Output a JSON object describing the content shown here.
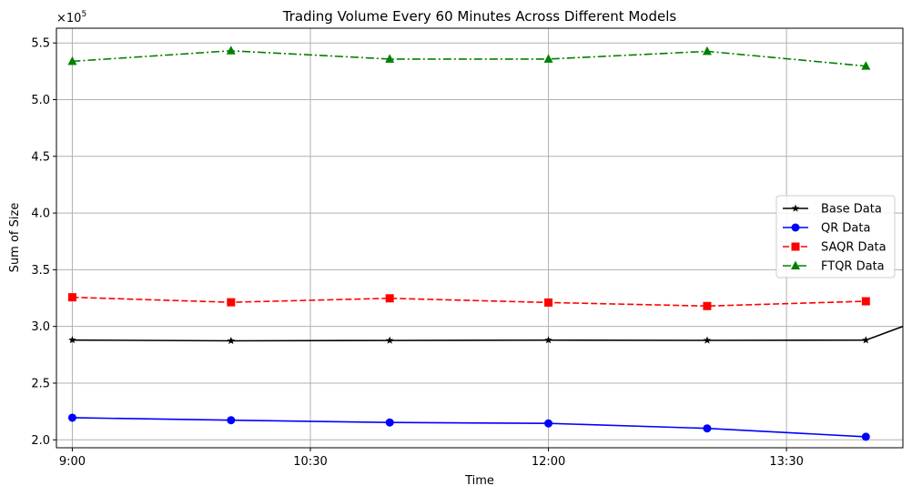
{
  "chart_data": {
    "type": "line",
    "title": "Trading Volume Every 60 Minutes Across Different Models",
    "xlabel": "Time",
    "ylabel": "Sum of Size",
    "y_multiplier_label": "×10",
    "y_multiplier_exponent": "5",
    "x_ticks": [
      {
        "value": 540,
        "label": "9:00"
      },
      {
        "value": 630,
        "label": "10:30"
      },
      {
        "value": 720,
        "label": "12:00"
      },
      {
        "value": 810,
        "label": "13:30"
      }
    ],
    "y_ticks": [
      "2.0",
      "2.5",
      "3.0",
      "3.5",
      "4.0",
      "4.5",
      "5.0",
      "5.5"
    ],
    "y_tick_values": [
      2.0,
      2.5,
      3.0,
      3.5,
      4.0,
      4.5,
      5.0,
      5.5
    ],
    "xlim": [
      534,
      854
    ],
    "ylim": [
      1.93,
      5.63
    ],
    "grid": true,
    "legend_position": "center right",
    "x": [
      540,
      600,
      660,
      720,
      780,
      840
    ],
    "series": [
      {
        "name": "Base Data",
        "values": [
          2.88,
          2.873,
          2.876,
          2.879,
          2.877,
          2.879
        ],
        "tail_end": [
          854,
          3.0
        ],
        "color": "#000000",
        "dash": "solid",
        "marker": "star"
      },
      {
        "name": "QR Data",
        "values": [
          2.195,
          2.173,
          2.153,
          2.145,
          2.101,
          2.027
        ],
        "color": "#0000ff",
        "dash": "solid",
        "marker": "circle"
      },
      {
        "name": "SAQR Data",
        "values": [
          3.257,
          3.213,
          3.248,
          3.211,
          3.18,
          3.222
        ],
        "color": "#ff0000",
        "dash": "dashed",
        "marker": "square"
      },
      {
        "name": "FTQR Data",
        "values": [
          5.338,
          5.431,
          5.358,
          5.358,
          5.426,
          5.296
        ],
        "color": "#008000",
        "dash": "dashdot",
        "marker": "triangle"
      }
    ]
  }
}
